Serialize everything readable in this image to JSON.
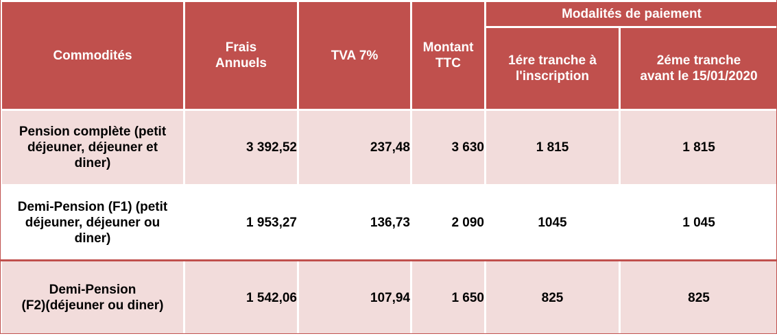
{
  "header": {
    "commodites": "Commodités",
    "frais_annuels_line1": "Frais",
    "frais_annuels_line2": "Annuels",
    "tva": "TVA 7%",
    "montant_ttc_line1": "Montant",
    "montant_ttc_line2": "TTC",
    "modalites": "Modalités de paiement",
    "tranche1_line1": "1ére tranche à",
    "tranche1_line2": "l'inscription",
    "tranche2_line1": "2éme tranche",
    "tranche2_line2": "avant le 15/01/2020"
  },
  "rows": [
    {
      "label_line1": "Pension complète (petit",
      "label_line2": "déjeuner, déjeuner et",
      "label_line3": "diner)",
      "frais": "3 392,52",
      "tva": "237,48",
      "ttc": "3 630",
      "tranche1": "1 815",
      "tranche2": "1 815"
    },
    {
      "label_line1": "Demi-Pension (F1) (petit",
      "label_line2": "déjeuner, déjeuner ou",
      "label_line3": "diner)",
      "frais": "1 953,27",
      "tva": "136,73",
      "ttc": "2 090",
      "tranche1": "1045",
      "tranche2": "1 045"
    },
    {
      "label_line1": "Demi-Pension",
      "label_line2": "(F2)(déjeuner ou diner)",
      "frais": "1 542,06",
      "tva": "107,94",
      "ttc": "1 650",
      "tranche1": "825",
      "tranche2": "825"
    }
  ],
  "colors": {
    "header_bg": "#c0504d",
    "row_light": "#f2dcdb",
    "row_white": "#ffffff"
  }
}
